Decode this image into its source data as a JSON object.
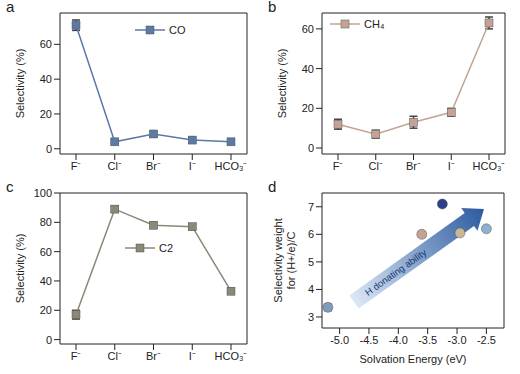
{
  "chart_data": [
    {
      "type": "line",
      "title": "a",
      "categories": [
        "F⁻",
        "Cl⁻",
        "Br⁻",
        "I⁻",
        "HCO₃⁻"
      ],
      "series": [
        {
          "name": "CO",
          "color": "#5b7aa6",
          "marker": "square",
          "values": [
            71,
            4,
            8.5,
            5,
            4
          ],
          "errors": [
            3,
            1,
            1.5,
            1.5,
            1
          ]
        }
      ],
      "ylabel": "Selectivity (%)",
      "ylim": [
        -3,
        78
      ],
      "yticks": [
        0,
        20,
        40,
        60
      ],
      "legend": "upper center"
    },
    {
      "type": "line",
      "title": "b",
      "categories": [
        "F⁻",
        "Cl⁻",
        "Br⁻",
        "I⁻",
        "HCO₃⁻"
      ],
      "series": [
        {
          "name": "CH₄",
          "color": "#c4a394",
          "marker": "square",
          "values": [
            12,
            7,
            13,
            18,
            63
          ],
          "errors": [
            2.5,
            2,
            3,
            2,
            3
          ]
        }
      ],
      "ylabel": "Selectivity (%)",
      "ylim": [
        -3,
        68
      ],
      "yticks": [
        0,
        20,
        40,
        60
      ],
      "legend": "upper left"
    },
    {
      "type": "line",
      "title": "c",
      "categories": [
        "F⁻",
        "Cl⁻",
        "Br⁻",
        "I⁻",
        "HCO₃⁻"
      ],
      "series": [
        {
          "name": "C2",
          "color": "#8b8878",
          "marker": "square",
          "values": [
            17,
            89,
            78,
            77,
            33
          ],
          "errors": [
            3,
            2,
            2,
            2,
            2
          ]
        }
      ],
      "ylabel": "Selectivity (%)",
      "ylim": [
        -3,
        100
      ],
      "yticks": [
        0,
        20,
        40,
        60,
        80,
        100
      ],
      "legend": "center"
    },
    {
      "type": "scatter",
      "title": "d",
      "x": [
        -5.2,
        -3.6,
        -3.25,
        -2.95,
        -2.5
      ],
      "values": [
        3.35,
        6.0,
        7.1,
        6.05,
        6.2
      ],
      "errors": [
        0.12,
        0.1,
        0.06,
        0.06,
        0.06
      ],
      "colors": [
        "#7f9cbf",
        "#c4a394",
        "#2e3f8a",
        "#c8b89a",
        "#8fb0d0"
      ],
      "marker": "circle",
      "xlabel": "Solvation Energy (eV)",
      "ylabel": "Selectivity weight for (H+/e)/C",
      "xlim": [
        -5.3,
        -2.2
      ],
      "xticks": [
        {
          "value": -5,
          "label": "-5.0"
        },
        -4.5,
        {
          "value": -4,
          "label": "-4.0"
        },
        -3.5,
        {
          "value": -3,
          "label": "-3.0"
        },
        -2.5
      ],
      "ylim": [
        2.6,
        7.5
      ],
      "yticks": [
        3,
        4,
        5,
        6,
        7
      ],
      "annotations": [
        "H donating ability"
      ]
    }
  ]
}
